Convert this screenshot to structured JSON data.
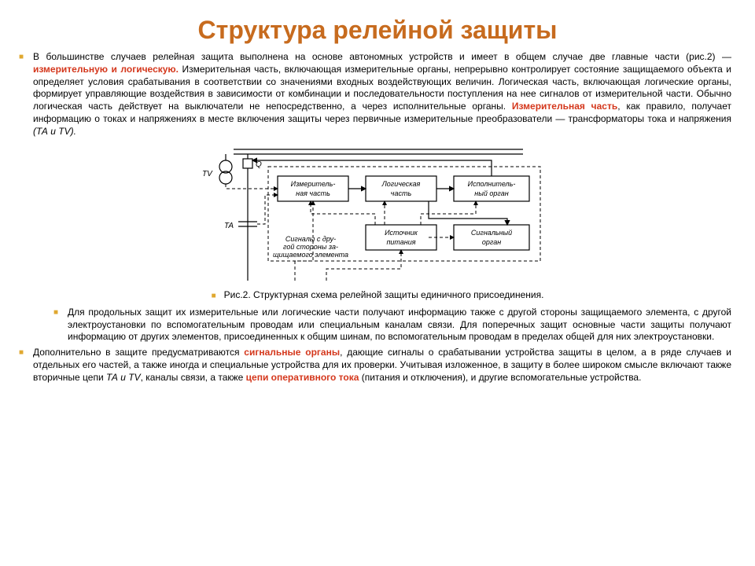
{
  "colors": {
    "title": "#c76b1e",
    "bullet1": "#e0a830",
    "bullet2": "#e0a830",
    "hl1": "#d4371c",
    "hl2": "#d4371c",
    "hl3": "#d4371c",
    "hl4": "#d4371c"
  },
  "title": "Структура релейной защиты",
  "p1a": "В большинстве случаев релейная защита выполнена на основе автономных устройств и имеет в общем случае две главные части (рис.2) — ",
  "p1hl1": "измерительную и логическую.",
  "p1b": " Измерительная часть, включающая измерительные органы, непрерывно контролирует состояние защищаемого объекта и определяет условия срабатывания в соответствии со значениями входных воздействующих величин. Логическая часть, включающая логические органы, формирует управляющие воздействия в зависимости от комбинации и последовательности поступления на нее сигналов от измерительной части. Обычно логическая часть действует на выключатели не непосредственно, а через исполнительные органы. ",
  "p1hl2": "Измерительная часть",
  "p1c": ", как правило, получает информацию о токах и напряжениях в месте включения защиты через первичные измерительные преобразователи — трансформаторы тока и напряжения ",
  "p1ital": "(ТА и TV).",
  "caption": "Рис.2. Структурная схема релейной защиты единичного присоединения.",
  "p2": "Для продольных защит их измерительные или логические части получают информацию также с другой стороны защищаемого элемента, с другой электроустановки по вспомогательным проводам или специальным каналам связи. Для поперечных защит основные части защиты получают информацию от других элементов, присоединенных к общим шинам, по вспомогательным проводам в пределах общей для них электроустановки.",
  "p3a": "Дополнительно в защите предусматриваются ",
  "p3hl1": "сигнальные органы",
  "p3b": ", дающие сигналы о срабатывании устройства защиты в целом, а в ряде случаев и отдельных его частей, а также иногда и специальные устройства для их проверки. Учитывая изложенное, в защиту в более широком смысле включают также вторичные цепи ",
  "p3ital": "ТА и TV",
  "p3c": ", каналы связи, а также ",
  "p3hl2": "цепи оперативного тока",
  "p3d": " (питания и отключения), и другие вспомогательные устройства.",
  "diagram": {
    "tv": "TV",
    "ta": "TA",
    "q": "Q",
    "box_meas": [
      "Измеритель-",
      "ная часть"
    ],
    "box_logic": [
      "Логическая",
      "часть"
    ],
    "box_exec": [
      "Исполнитель-",
      "ный орган"
    ],
    "box_src": [
      "Источник",
      "питания"
    ],
    "box_sig": [
      "Сигнальный",
      "орган"
    ],
    "signals": [
      "Сигналы с дру-",
      "гой стороны за-",
      "щищаемого элемента"
    ],
    "stroke": "#000000",
    "bg": "#ffffff"
  }
}
